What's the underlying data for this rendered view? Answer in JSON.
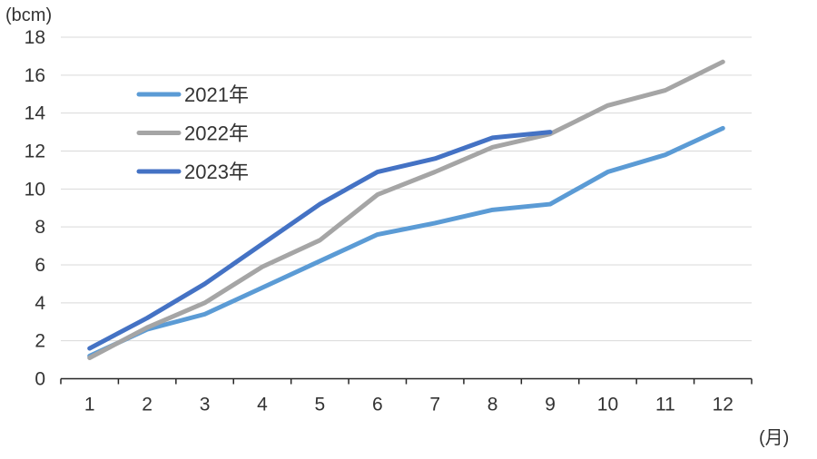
{
  "chart_data": {
    "type": "line",
    "title": "",
    "ylabel": "(bcm)",
    "xlabel": "(月)",
    "x_tick_labels": [
      "1",
      "2",
      "3",
      "4",
      "5",
      "6",
      "7",
      "8",
      "9",
      "10",
      "11",
      "12"
    ],
    "y_tick_labels": [
      "0",
      "2",
      "4",
      "6",
      "8",
      "10",
      "12",
      "14",
      "16",
      "18"
    ],
    "ylim": [
      0,
      18
    ],
    "ytick_step": 2,
    "grid": true,
    "legend_position": "upper-left-inside",
    "series": [
      {
        "name": "2021年",
        "color": "#5B9BD5",
        "values": [
          1.2,
          2.6,
          3.4,
          4.8,
          6.2,
          7.6,
          8.2,
          8.9,
          9.2,
          10.9,
          11.8,
          13.2
        ]
      },
      {
        "name": "2022年",
        "color": "#A5A5A5",
        "values": [
          1.1,
          2.7,
          4.0,
          5.9,
          7.3,
          9.7,
          10.9,
          12.2,
          12.9,
          14.4,
          15.2,
          16.7
        ]
      },
      {
        "name": "2023年",
        "color": "#4472C4",
        "values": [
          1.6,
          3.2,
          5.0,
          7.1,
          9.2,
          10.9,
          11.6,
          12.7,
          13.0,
          null,
          null,
          null
        ]
      }
    ]
  },
  "style": {
    "grid_color": "#D9D9D9",
    "axis_color": "#262626",
    "tick_text_color": "#333333",
    "legend_text_color": "#333333"
  }
}
